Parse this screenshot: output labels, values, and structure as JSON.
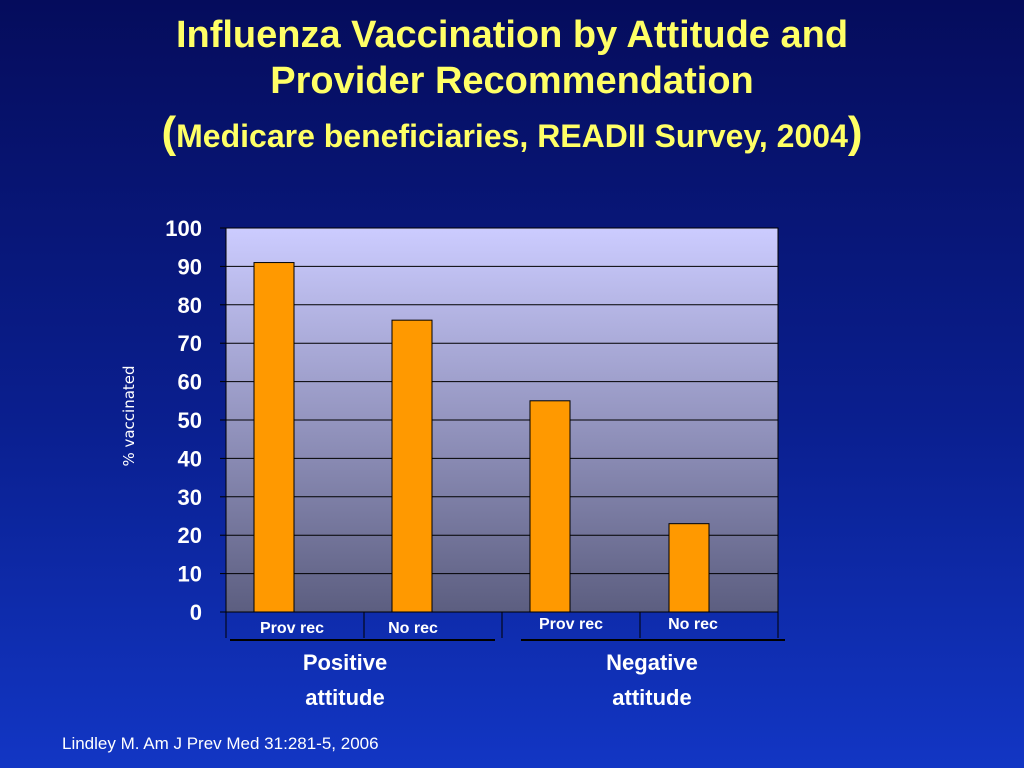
{
  "title": {
    "line1": "Influenza Vaccination by Attitude and",
    "line2": "Provider Recommendation",
    "line3_open": "(",
    "line3_text": "Medicare beneficiaries, READII Survey, 2004",
    "line3_close": ")"
  },
  "colors": {
    "bar": "#ff9900",
    "title": "#ffff66",
    "plot_top": "#ccccff",
    "plot_bottom": "#5c5e80"
  },
  "chart_data": {
    "type": "bar",
    "ylabel": "% vaccinated",
    "ylim": [
      0,
      100
    ],
    "yticks": [
      0,
      10,
      20,
      30,
      40,
      50,
      60,
      70,
      80,
      90,
      100
    ],
    "grid": true,
    "categories": [
      "Prov rec",
      "No rec",
      "Prov rec",
      "No rec"
    ],
    "values": [
      91,
      76,
      55,
      23
    ],
    "groups": [
      {
        "line1": "Positive",
        "line2": "attitude"
      },
      {
        "line1": "Negative",
        "line2": "attitude"
      }
    ]
  },
  "source": "Lindley M. Am J Prev Med 31:281-5, 2006"
}
